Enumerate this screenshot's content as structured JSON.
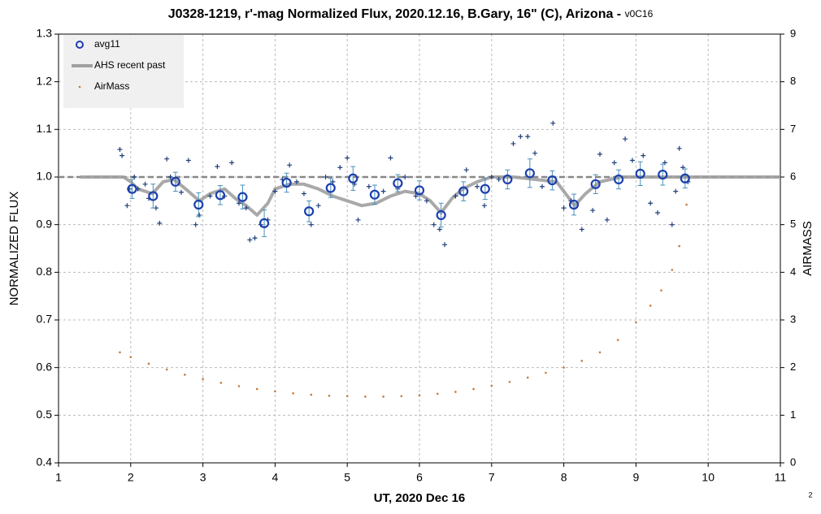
{
  "chart_data": {
    "type": "scatter",
    "title": "J0328-1219, r'-mag Normalized Flux, 2020.12.16, B.Gary, 16\" (C), Arizona - ",
    "title_suffix": "v0C16",
    "xlabel": "UT, 2020 Dec 16",
    "ylabel": "NORMALIZED FLUX",
    "y2label": "AIRMASS",
    "footnote": "2",
    "xlim": [
      1,
      11
    ],
    "xticks": [
      1,
      2,
      3,
      4,
      5,
      6,
      7,
      8,
      9,
      10,
      11
    ],
    "ylim": [
      0.4,
      1.3
    ],
    "yticks": [
      0.4,
      0.5,
      0.6,
      0.7,
      0.8,
      0.9,
      {
        "value": 1,
        "label": "1.0"
      },
      1.1,
      1.2,
      1.3
    ],
    "y2lim": [
      0,
      9
    ],
    "y2ticks": [
      0,
      1,
      2,
      3,
      4,
      5,
      6,
      7,
      8,
      9
    ],
    "grid": true,
    "reference_line": 1,
    "legend": "upper left",
    "series": [
      {
        "kind": "plus",
        "color": "#1f3f7a",
        "x": [
          1.85,
          1.88,
          1.95,
          1.98,
          2.05,
          2.1,
          2.2,
          2.25,
          2.35,
          2.4,
          2.5,
          2.55,
          2.7,
          2.8,
          2.9,
          2.95,
          3.1,
          3.2,
          3.3,
          3.4,
          3.5,
          3.6,
          3.65,
          3.72,
          3.8,
          3.9,
          4.0,
          4.1,
          4.2,
          4.3,
          4.4,
          4.5,
          4.6,
          4.7,
          4.8,
          4.9,
          5.0,
          5.1,
          5.15,
          5.3,
          5.5,
          5.6,
          5.7,
          5.8,
          5.95,
          6.1,
          6.2,
          6.28,
          6.35,
          6.5,
          6.65,
          6.8,
          6.9,
          7.0,
          7.1,
          7.3,
          7.4,
          7.5,
          7.6,
          7.7,
          7.85,
          8.0,
          8.1,
          8.25,
          8.4,
          8.5,
          8.6,
          8.7,
          8.85,
          8.95,
          9.1,
          9.2,
          9.3,
          9.4,
          9.5,
          9.55,
          9.6,
          9.65,
          9.72
        ],
        "values": [
          1.058,
          1.045,
          0.94,
          0.975,
          1.0,
          0.975,
          0.985,
          0.955,
          0.935,
          0.903,
          1.038,
          1.0,
          0.968,
          1.035,
          0.9,
          0.92,
          0.96,
          1.022,
          0.96,
          1.03,
          0.945,
          0.935,
          0.868,
          0.872,
          0.9,
          0.91,
          0.97,
          0.995,
          1.025,
          0.99,
          0.965,
          0.9,
          0.94,
          1.0,
          0.99,
          1.02,
          1.04,
          0.985,
          0.91,
          0.98,
          0.97,
          1.04,
          0.975,
          1.0,
          0.96,
          0.95,
          0.9,
          0.89,
          0.858,
          0.96,
          1.015,
          0.98,
          0.94,
          1.0,
          0.995,
          1.07,
          1.085,
          1.085,
          1.05,
          0.98,
          1.113,
          0.935,
          0.95,
          0.89,
          0.93,
          1.048,
          0.91,
          1.03,
          1.08,
          1.035,
          1.045,
          0.945,
          0.925,
          1.03,
          0.9,
          0.97,
          1.06,
          1.02,
          0.99
        ]
      },
      {
        "name": "avg11",
        "kind": "circle",
        "color": "#1a3fae",
        "error_color": "#4a90b8",
        "x": [
          2.02,
          2.31,
          2.62,
          2.94,
          3.24,
          3.55,
          3.85,
          4.16,
          4.47,
          4.77,
          5.08,
          5.38,
          5.7,
          6.0,
          6.3,
          6.61,
          6.91,
          7.22,
          7.53,
          7.84,
          8.14,
          8.44,
          8.76,
          9.06,
          9.37,
          9.68
        ],
        "values": [
          0.975,
          0.96,
          0.99,
          0.942,
          0.962,
          0.958,
          0.903,
          0.988,
          0.928,
          0.977,
          0.997,
          0.963,
          0.987,
          0.972,
          0.92,
          0.97,
          0.975,
          0.995,
          1.008,
          0.993,
          0.942,
          0.985,
          0.995,
          1.007,
          1.005,
          0.997
        ],
        "errors": [
          0.02,
          0.025,
          0.02,
          0.025,
          0.02,
          0.025,
          0.028,
          0.02,
          0.022,
          0.02,
          0.025,
          0.02,
          0.018,
          0.02,
          0.025,
          0.02,
          0.022,
          0.02,
          0.03,
          0.02,
          0.022,
          0.02,
          0.02,
          0.025,
          0.022,
          0.02
        ]
      },
      {
        "name": "AHS recent past",
        "kind": "line",
        "color": "#a0a0a0",
        "x": [
          1.3,
          1.9,
          2.0,
          2.1,
          2.3,
          2.45,
          2.6,
          2.8,
          2.95,
          3.1,
          3.3,
          3.45,
          3.6,
          3.75,
          3.9,
          4.0,
          4.2,
          4.4,
          4.6,
          4.8,
          5.0,
          5.2,
          5.4,
          5.6,
          5.8,
          6.0,
          6.15,
          6.3,
          6.45,
          6.6,
          6.8,
          7.0,
          7.3,
          7.6,
          7.9,
          8.0,
          8.15,
          8.3,
          8.5,
          8.8,
          9.5,
          11
        ],
        "values": [
          1,
          1,
          0.99,
          0.975,
          0.965,
          0.99,
          0.995,
          0.97,
          0.95,
          0.965,
          0.975,
          0.955,
          0.94,
          0.92,
          0.945,
          0.975,
          0.985,
          0.985,
          0.975,
          0.96,
          0.95,
          0.94,
          0.945,
          0.96,
          0.97,
          0.965,
          0.95,
          0.925,
          0.955,
          0.975,
          0.99,
          1,
          1,
          0.995,
          0.99,
          0.97,
          0.94,
          0.965,
          0.99,
          1,
          1,
          1
        ]
      },
      {
        "name": "AirMass",
        "kind": "dot",
        "color": "#c87a3a",
        "axis": "y2",
        "x": [
          1.85,
          2.0,
          2.25,
          2.5,
          2.75,
          3.0,
          3.25,
          3.5,
          3.75,
          4.0,
          4.25,
          4.5,
          4.75,
          5.0,
          5.25,
          5.5,
          5.75,
          6.0,
          6.25,
          6.5,
          6.75,
          7.0,
          7.25,
          7.5,
          7.75,
          8.0,
          8.25,
          8.5,
          8.75,
          9.0,
          9.2,
          9.35,
          9.5,
          9.6,
          9.7
        ],
        "values": [
          2.32,
          2.22,
          2.08,
          1.96,
          1.85,
          1.76,
          1.68,
          1.61,
          1.55,
          1.5,
          1.46,
          1.43,
          1.41,
          1.4,
          1.39,
          1.39,
          1.4,
          1.42,
          1.45,
          1.49,
          1.55,
          1.62,
          1.7,
          1.79,
          1.89,
          2.0,
          2.14,
          2.32,
          2.58,
          2.95,
          3.3,
          3.62,
          4.05,
          4.55,
          5.42
        ]
      }
    ]
  }
}
